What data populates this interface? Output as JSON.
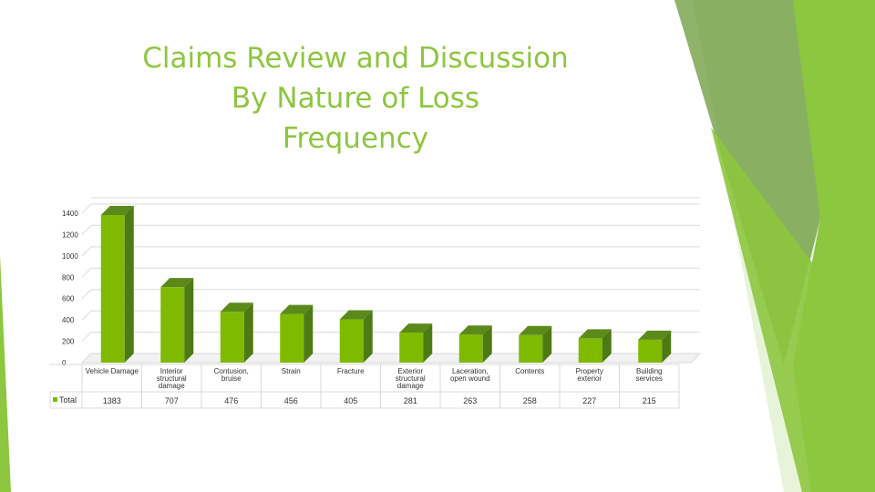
{
  "title": {
    "line1": "Claims Review and Discussion",
    "line2": "By Nature of Loss",
    "line3": "Frequency"
  },
  "colors": {
    "accent": "#8dc63f",
    "bar_front": "#7fba00",
    "bar_top": "#5c8a1a",
    "bar_side": "#4e7a14",
    "deco_light": "#d9ecc0",
    "deco_mid": "#8dc63f",
    "deco_dark": "#6a9a3a"
  },
  "chart_data": {
    "type": "bar",
    "categories": [
      "Vehicle Damage",
      "Interior structural damage",
      "Contusion, bruise",
      "Strain",
      "Fracture",
      "Exterior structural damage",
      "Laceration, open wound",
      "Contents",
      "Property exterior",
      "Building services"
    ],
    "category_lines": [
      [
        "Vehicle Damage"
      ],
      [
        "Interior",
        "structural",
        "damage"
      ],
      [
        "Contusion,",
        "bruise"
      ],
      [
        "Strain"
      ],
      [
        "Fracture"
      ],
      [
        "Exterior",
        "structural",
        "damage"
      ],
      [
        "Laceration,",
        "open wound"
      ],
      [
        "Contents"
      ],
      [
        "Property",
        "exterior"
      ],
      [
        "Building",
        "services"
      ]
    ],
    "series": [
      {
        "name": "Total",
        "values": [
          1383,
          707,
          476,
          456,
          405,
          281,
          263,
          258,
          227,
          215
        ]
      }
    ],
    "value_labels": [
      "1383",
      "707",
      "476",
      "456",
      "405",
      "281",
      "263",
      "258",
      "227",
      "215"
    ],
    "yticks": [
      "0",
      "200",
      "400",
      "600",
      "800",
      "1000",
      "1200",
      "1400"
    ],
    "ylim": [
      0,
      1400
    ],
    "grid": true,
    "legend": "left"
  }
}
